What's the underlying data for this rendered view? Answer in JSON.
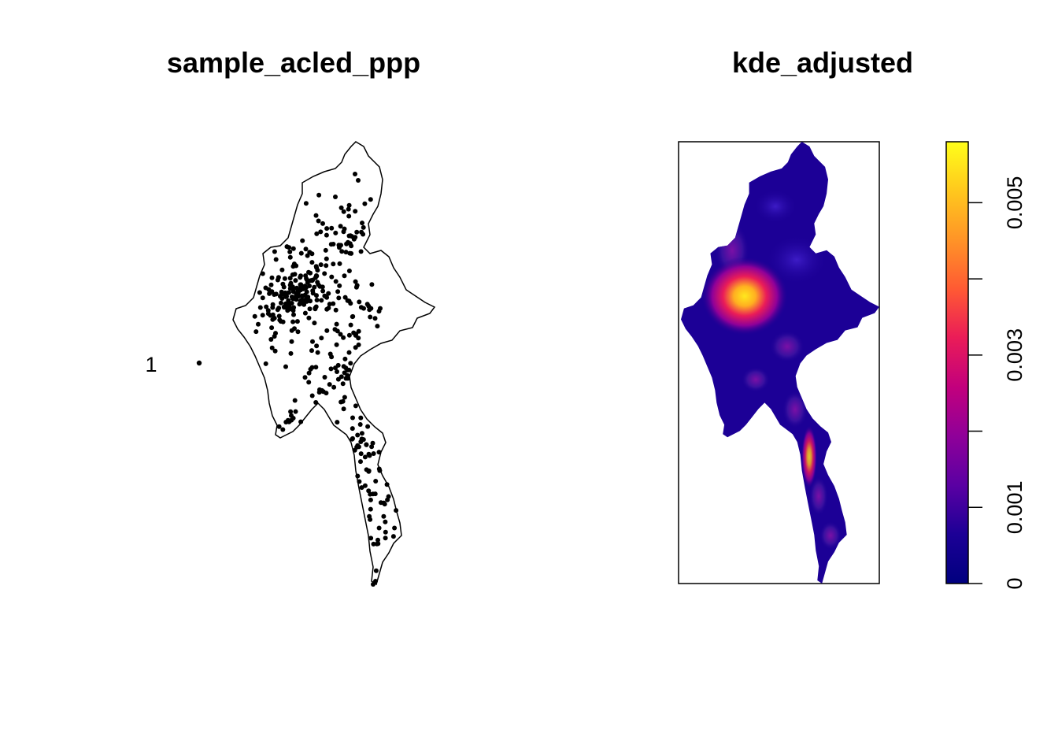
{
  "panels": {
    "left": {
      "title": "sample_acled_ppp",
      "mark_label": "1"
    },
    "right": {
      "title": "kde_adjusted",
      "legend": {
        "labels": [
          "0",
          "0.001",
          "0.003",
          "0.005"
        ],
        "value_range": [
          0,
          0.0058
        ],
        "tick_values": [
          0,
          0.001,
          0.002,
          0.003,
          0.004,
          0.005
        ],
        "label_values": [
          0,
          0.001,
          0.003,
          0.005
        ],
        "palette": [
          "#00007f",
          "#1c0096",
          "#5a00a3",
          "#8f0099",
          "#c2007d",
          "#ea1c58",
          "#ff5a33",
          "#ff9427",
          "#ffc81d",
          "#ffff1a"
        ]
      }
    }
  },
  "chart_data": [
    {
      "type": "scatter",
      "title": "sample_acled_ppp",
      "series": [
        {
          "name": "1"
        }
      ],
      "note_values": "point pattern of events over Myanmar boundary"
    },
    {
      "type": "heatmap",
      "title": "kde_adjusted",
      "zlim": [
        0,
        0.0058
      ],
      "legend_ticks": [
        0,
        0.001,
        0.003,
        0.005
      ]
    }
  ]
}
